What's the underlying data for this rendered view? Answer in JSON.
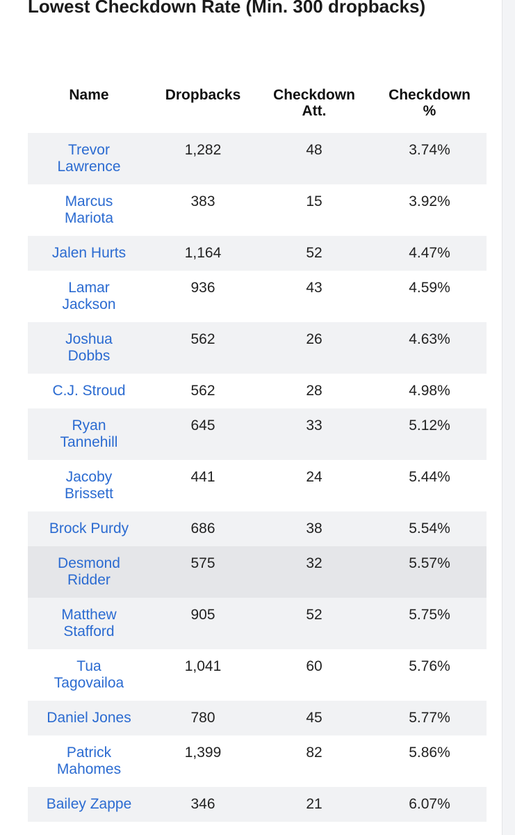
{
  "title": "Lowest Checkdown Rate (Min. 300 dropbacks)",
  "table": {
    "header": [
      "Name",
      "Dropbacks",
      "Checkdown Att.",
      "Checkdown %"
    ],
    "rows": [
      [
        "Trevor Lawrence",
        "1,282",
        "48",
        "3.74%"
      ],
      [
        "Marcus Mariota",
        "383",
        "15",
        "3.92%"
      ],
      [
        "Jalen Hurts",
        "1,164",
        "52",
        "4.47%"
      ],
      [
        "Lamar Jackson",
        "936",
        "43",
        "4.59%"
      ],
      [
        "Joshua Dobbs",
        "562",
        "26",
        "4.63%"
      ],
      [
        "C.J. Stroud",
        "562",
        "28",
        "4.98%"
      ],
      [
        "Ryan Tannehill",
        "645",
        "33",
        "5.12%"
      ],
      [
        "Jacoby Brissett",
        "441",
        "24",
        "5.44%"
      ],
      [
        "Brock Purdy",
        "686",
        "38",
        "5.54%"
      ],
      [
        "Desmond Ridder",
        "575",
        "32",
        "5.57%"
      ],
      [
        "Matthew Stafford",
        "905",
        "52",
        "5.75%"
      ],
      [
        "Tua Tagovailoa",
        "1,041",
        "60",
        "5.76%"
      ],
      [
        "Daniel Jones",
        "780",
        "45",
        "5.77%"
      ],
      [
        "Patrick Mahomes",
        "1,399",
        "82",
        "5.86%"
      ],
      [
        "Bailey Zappe",
        "346",
        "21",
        "6.07%"
      ]
    ]
  }
}
